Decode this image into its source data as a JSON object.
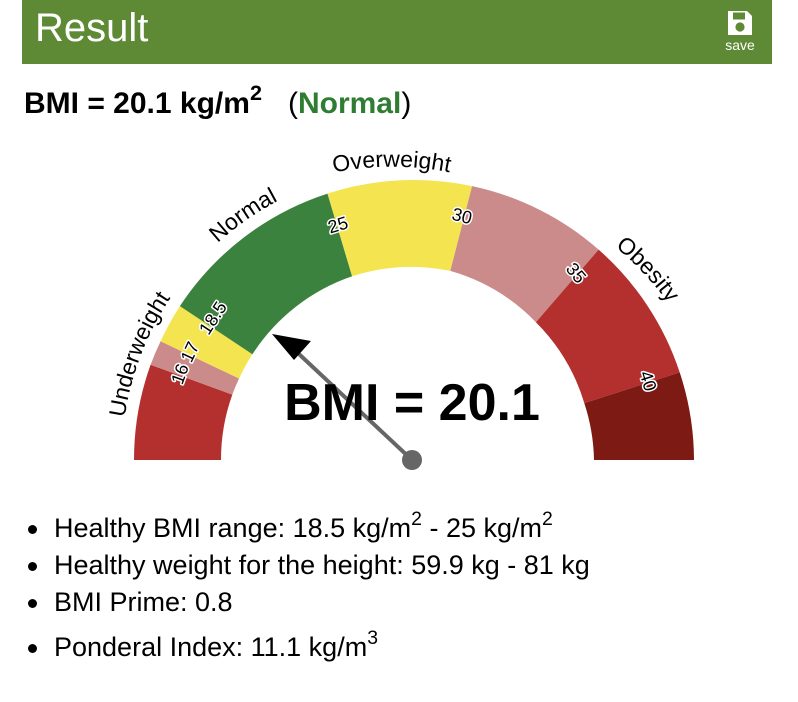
{
  "header": {
    "title": "Result",
    "save_label": "save",
    "save_icon": "floppy-disk-icon"
  },
  "result": {
    "bmi_prefix": "BMI = 20.1 kg/m",
    "bmi_exp": "2",
    "category": "Normal",
    "paren_open": "(",
    "paren_close": ")"
  },
  "colors": {
    "header_bg": "#5e8a35",
    "normal_text": "#2e7d32",
    "severe_thinness": "#b3302f",
    "moderate_thinness": "#cc8b8b",
    "mild_thinness": "#f4e44f",
    "normal": "#3b823f",
    "overweight": "#f4e44f",
    "obese_1": "#cc8b8b",
    "obese_2": "#b3302f",
    "obese_3": "#7d1a14"
  },
  "gauge": {
    "bmi_value": 20.1,
    "readout": "BMI = 20.1",
    "category_labels": [
      "Underweight",
      "Normal",
      "Overweight",
      "Obesity"
    ],
    "tick_labels": [
      "16",
      "17",
      "18.5",
      "25",
      "30",
      "35",
      "40"
    ],
    "segments": [
      {
        "name": "severe-thinness",
        "from": "min",
        "to": "16",
        "color": "#b3302f"
      },
      {
        "name": "moderate-thinness",
        "from": "16",
        "to": "17",
        "color": "#cc8b8b"
      },
      {
        "name": "mild-thinness",
        "from": "17",
        "to": "18.5",
        "color": "#f4e44f"
      },
      {
        "name": "normal",
        "from": "18.5",
        "to": "25",
        "color": "#3b823f"
      },
      {
        "name": "overweight",
        "from": "25",
        "to": "30",
        "color": "#f4e44f"
      },
      {
        "name": "obese-class-1",
        "from": "30",
        "to": "35",
        "color": "#cc8b8b"
      },
      {
        "name": "obese-class-2",
        "from": "35",
        "to": "40",
        "color": "#b3302f"
      },
      {
        "name": "obese-class-3",
        "from": "40",
        "to": "max",
        "color": "#7d1a14"
      }
    ]
  },
  "details": {
    "healthy_range_label": "Healthy BMI range: 18.5 kg/m",
    "healthy_range_exp1": "2",
    "healthy_range_mid": " - 25 kg/m",
    "healthy_range_exp2": "2",
    "healthy_weight": "Healthy weight for the height: 59.9 kg - 81 kg",
    "bmi_prime": "BMI Prime: 0.8",
    "ponderal_label": "Ponderal Index: 11.1 kg/m",
    "ponderal_exp": "3"
  }
}
